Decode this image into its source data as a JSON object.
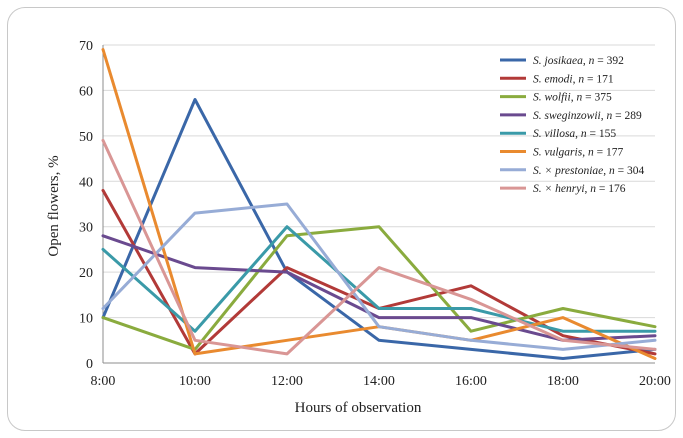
{
  "chart_data": {
    "type": "line",
    "xlabel": "Hours of observation",
    "ylabel": "Open flowers, %",
    "x": [
      "8:00",
      "10:00",
      "12:00",
      "14:00",
      "16:00",
      "18:00",
      "20:00"
    ],
    "y_ticks": [
      0,
      10,
      20,
      30,
      40,
      50,
      60,
      70
    ],
    "ylim": [
      0,
      70
    ],
    "grid": "horizontal",
    "legend_position": "top-right",
    "series": [
      {
        "name_parts": [
          "S. josikaea",
          ", ",
          "n",
          " = 392"
        ],
        "color": "#3a67a8",
        "values": [
          10,
          58,
          20,
          5,
          3,
          1,
          3
        ]
      },
      {
        "name_parts": [
          "S. emodi",
          ", ",
          "n",
          " = 171"
        ],
        "color": "#b23a38",
        "values": [
          38,
          2,
          21,
          12,
          17,
          6,
          2
        ]
      },
      {
        "name_parts": [
          "S. wolfii",
          ", ",
          "n",
          " = 375"
        ],
        "color": "#8aab3e",
        "values": [
          10,
          3,
          28,
          30,
          7,
          12,
          8
        ]
      },
      {
        "name_parts": [
          "S. sweginzowii",
          ", ",
          "n",
          " = 289"
        ],
        "color": "#6a4a8f",
        "values": [
          28,
          21,
          20,
          10,
          10,
          5,
          6
        ]
      },
      {
        "name_parts": [
          "S. villosa",
          ", ",
          "n",
          " = 155"
        ],
        "color": "#3a9aa8",
        "values": [
          25,
          7,
          30,
          12,
          12,
          7,
          7
        ]
      },
      {
        "name_parts": [
          "S. vulgaris",
          ", ",
          "n",
          " = 177"
        ],
        "color": "#e98a2f",
        "values": [
          69,
          2,
          5,
          8,
          5,
          10,
          1
        ]
      },
      {
        "name_parts": [
          "S. × prestoniae",
          ", ",
          "n",
          " = 304"
        ],
        "color": "#97acd6",
        "values": [
          12,
          33,
          35,
          8,
          5,
          3,
          5
        ]
      },
      {
        "name_parts": [
          "S. × henryi",
          ", ",
          "n",
          " = 176"
        ],
        "color": "#d99695",
        "values": [
          49,
          5,
          2,
          21,
          14,
          5,
          3
        ]
      }
    ]
  }
}
